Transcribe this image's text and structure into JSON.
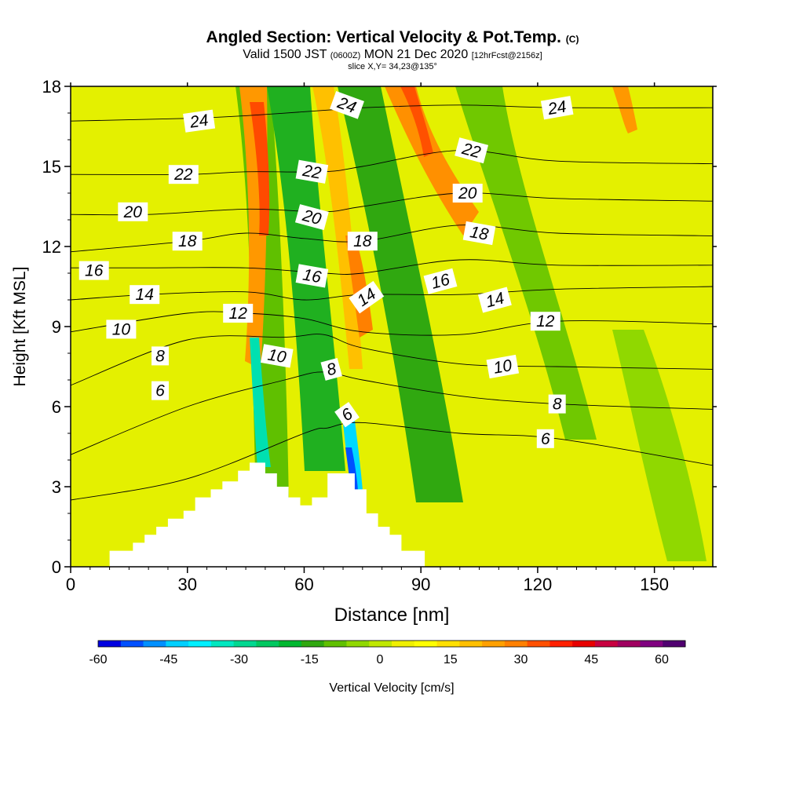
{
  "title": {
    "main": "Angled Section: Vertical Velocity & Pot.Temp.",
    "main_unit": "(C)",
    "valid_prefix": "Valid 1500 JST",
    "valid_utc": "(0600Z)",
    "valid_date": "MON 21 Dec 2020",
    "forecast": "[12hrFcst@2156z]",
    "slice": "slice X,Y= 34,23@135°"
  },
  "chart_data": {
    "type": "heatmap",
    "xlabel": "Distance [nm]",
    "ylabel": "Height [Kft MSL]",
    "xlim": [
      0,
      165
    ],
    "ylim": [
      0,
      18
    ],
    "x_ticks": [
      "0",
      "30",
      "60",
      "90",
      "120",
      "150"
    ],
    "y_ticks": [
      "0",
      "3",
      "6",
      "9",
      "12",
      "15",
      "18"
    ],
    "colorbar": {
      "label": "Vertical Velocity [cm/s]",
      "tick_labels": [
        "-60",
        "-45",
        "-30",
        "-15",
        "0",
        "15",
        "30",
        "45",
        "60"
      ],
      "colors": [
        "#0000e0",
        "#0050ff",
        "#0090ff",
        "#00d0ff",
        "#00f0ff",
        "#00e8c0",
        "#00d890",
        "#00c860",
        "#00b830",
        "#30a810",
        "#60c000",
        "#90d800",
        "#c0e800",
        "#f0f000",
        "#ffff00",
        "#ffe000",
        "#ffc000",
        "#ffa000",
        "#ff8000",
        "#ff5000",
        "#ff2000",
        "#e80000",
        "#c80040",
        "#a00060",
        "#800080",
        "#500070"
      ]
    },
    "terrain_profile": {
      "x": [
        0,
        10,
        10,
        16,
        16,
        19,
        19,
        22,
        22,
        25,
        25,
        29,
        29,
        32,
        32,
        36,
        36,
        39,
        39,
        43,
        43,
        46,
        46,
        50,
        50,
        53,
        53,
        56,
        56,
        59,
        59,
        62,
        62,
        66,
        66,
        69,
        69,
        73,
        73,
        76,
        76,
        79,
        79,
        82,
        82,
        85,
        85,
        91,
        91,
        165
      ],
      "y": [
        0,
        0,
        0.6,
        0.6,
        0.9,
        0.9,
        1.2,
        1.2,
        1.5,
        1.5,
        1.8,
        1.8,
        2.1,
        2.1,
        2.6,
        2.6,
        2.9,
        2.9,
        3.2,
        3.2,
        3.6,
        3.6,
        3.9,
        3.9,
        3.5,
        3.5,
        3.0,
        3.0,
        2.6,
        2.6,
        2.3,
        2.3,
        2.6,
        2.6,
        3.5,
        3.5,
        3.5,
        3.5,
        2.9,
        2.9,
        2.0,
        2.0,
        1.5,
        1.5,
        1.2,
        1.2,
        0.6,
        0.6,
        0,
        0
      ]
    },
    "theta_contours": [
      {
        "label": "6",
        "x": [
          0,
          30,
          60,
          66,
          75,
          100,
          125,
          165
        ],
        "y": [
          2.5,
          3.3,
          5.0,
          5.2,
          5.4,
          5.0,
          4.8,
          3.8
        ]
      },
      {
        "label": "8",
        "x": [
          0,
          30,
          55,
          65,
          75,
          100,
          125,
          165
        ],
        "y": [
          4.2,
          6.0,
          7.0,
          7.3,
          7.0,
          6.4,
          6.1,
          5.9
        ]
      },
      {
        "label": "10",
        "x": [
          0,
          30,
          55,
          65,
          75,
          100,
          125,
          165
        ],
        "y": [
          6.8,
          8.5,
          8.6,
          8.7,
          8.2,
          7.6,
          7.5,
          7.4
        ]
      },
      {
        "label": "12",
        "x": [
          0,
          30,
          45,
          60,
          75,
          100,
          125,
          165
        ],
        "y": [
          8.8,
          9.5,
          9.5,
          9.3,
          8.8,
          8.7,
          9.2,
          9.1
        ]
      },
      {
        "label": "14",
        "x": [
          0,
          20,
          45,
          60,
          75,
          100,
          125,
          165
        ],
        "y": [
          10.0,
          10.2,
          10.3,
          10.0,
          10.2,
          10.2,
          10.4,
          10.5
        ]
      },
      {
        "label": "16",
        "x": [
          0,
          20,
          45,
          65,
          75,
          100,
          125,
          165
        ],
        "y": [
          11.2,
          11.2,
          11.2,
          11.0,
          11.0,
          11.5,
          11.3,
          11.3
        ]
      },
      {
        "label": "18",
        "x": [
          0,
          30,
          45,
          60,
          75,
          100,
          125,
          165
        ],
        "y": [
          11.8,
          12.2,
          12.5,
          12.3,
          12.2,
          12.8,
          12.5,
          12.4
        ]
      },
      {
        "label": "20",
        "x": [
          0,
          20,
          45,
          65,
          75,
          100,
          125,
          165
        ],
        "y": [
          13.2,
          13.2,
          13.4,
          13.3,
          13.5,
          14.0,
          13.8,
          13.7
        ]
      },
      {
        "label": "22",
        "x": [
          0,
          30,
          45,
          65,
          75,
          100,
          125,
          165
        ],
        "y": [
          14.7,
          14.7,
          14.8,
          14.8,
          15.0,
          15.6,
          15.2,
          15.1
        ]
      },
      {
        "label": "24",
        "x": [
          0,
          30,
          45,
          65,
          75,
          100,
          125,
          165
        ],
        "y": [
          16.7,
          16.8,
          16.9,
          17.1,
          17.2,
          17.3,
          17.2,
          17.2
        ]
      }
    ],
    "contour_labels": [
      {
        "text": "24",
        "x": 33,
        "y": 16.7,
        "angle": -8
      },
      {
        "text": "24",
        "x": 71,
        "y": 17.3,
        "angle": 20
      },
      {
        "text": "24",
        "x": 125,
        "y": 17.2,
        "angle": -10
      },
      {
        "text": "22",
        "x": 29,
        "y": 14.7,
        "angle": 0
      },
      {
        "text": "22",
        "x": 62,
        "y": 14.8,
        "angle": 10
      },
      {
        "text": "22",
        "x": 103,
        "y": 15.6,
        "angle": 15
      },
      {
        "text": "20",
        "x": 16,
        "y": 13.3,
        "angle": 0
      },
      {
        "text": "20",
        "x": 62,
        "y": 13.1,
        "angle": 15
      },
      {
        "text": "20",
        "x": 102,
        "y": 14.0,
        "angle": 0
      },
      {
        "text": "18",
        "x": 30,
        "y": 12.2,
        "angle": 0
      },
      {
        "text": "18",
        "x": 75,
        "y": 12.2,
        "angle": 0
      },
      {
        "text": "18",
        "x": 105,
        "y": 12.5,
        "angle": 10
      },
      {
        "text": "16",
        "x": 6,
        "y": 11.1,
        "angle": 0
      },
      {
        "text": "16",
        "x": 62,
        "y": 10.9,
        "angle": 10
      },
      {
        "text": "16",
        "x": 95,
        "y": 10.7,
        "angle": -15
      },
      {
        "text": "14",
        "x": 19,
        "y": 10.2,
        "angle": 0
      },
      {
        "text": "14",
        "x": 76,
        "y": 10.1,
        "angle": -35
      },
      {
        "text": "14",
        "x": 109,
        "y": 10.0,
        "angle": -15
      },
      {
        "text": "12",
        "x": 43,
        "y": 9.5,
        "angle": 0
      },
      {
        "text": "12",
        "x": 122,
        "y": 9.2,
        "angle": 0
      },
      {
        "text": "10",
        "x": 13,
        "y": 8.9,
        "angle": 0
      },
      {
        "text": "10",
        "x": 53,
        "y": 7.9,
        "angle": 10
      },
      {
        "text": "10",
        "x": 111,
        "y": 7.5,
        "angle": -10
      },
      {
        "text": "8",
        "x": 23,
        "y": 7.9,
        "angle": 0
      },
      {
        "text": "8",
        "x": 67,
        "y": 7.4,
        "angle": -15
      },
      {
        "text": "8",
        "x": 125,
        "y": 6.1,
        "angle": 0
      },
      {
        "text": "6",
        "x": 23,
        "y": 6.6,
        "angle": 0
      },
      {
        "text": "6",
        "x": 71,
        "y": 5.7,
        "angle": -35
      },
      {
        "text": "6",
        "x": 122,
        "y": 4.8,
        "angle": 0
      }
    ]
  }
}
